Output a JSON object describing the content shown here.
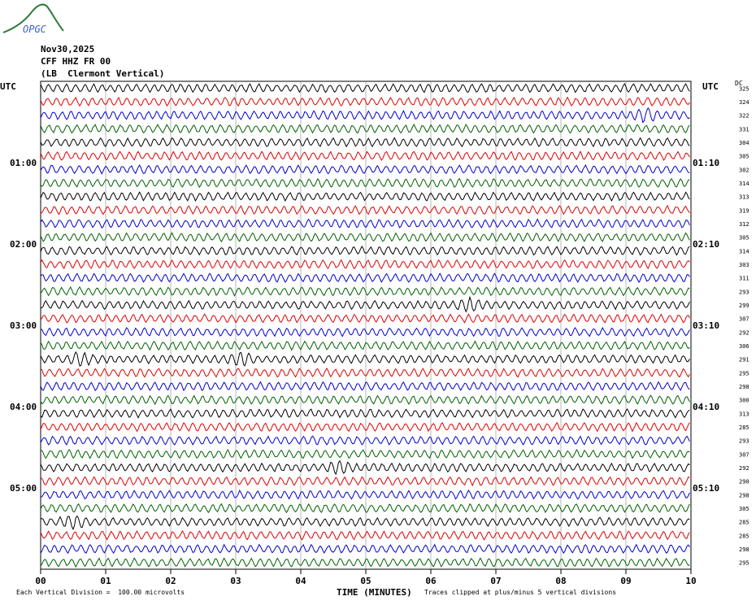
{
  "header": {
    "date": "Nov30,2025",
    "station": "CFF HHZ FR 00",
    "location": "(LB  Clermont Vertical)",
    "utc_left": "UTC",
    "utc_right": "UTC",
    "dc_label": "DC",
    "logo_text": "OPGC"
  },
  "footer": {
    "scale_note": "Each Vertical Division =  100.00 microvolts",
    "time_axis_label": "TIME (MINUTES)",
    "clip_note": "Traces clipped at plus/minus 5 vertical divisions"
  },
  "colors": {
    "trace_cycle": [
      "#000000",
      "#e00000",
      "#0000d0",
      "#006000"
    ],
    "grid": "#888888",
    "logo": "#2d7a3a"
  },
  "chart_data": {
    "type": "line",
    "description_type": "helicorder",
    "x_ticks": [
      "00",
      "01",
      "02",
      "03",
      "04",
      "05",
      "06",
      "07",
      "08",
      "09",
      "10"
    ],
    "xlim": [
      0,
      10
    ],
    "left_time_labels": [
      "01:00",
      "02:00",
      "03:00",
      "04:00",
      "05:00"
    ],
    "right_time_labels": [
      "01:10",
      "02:10",
      "03:10",
      "04:10",
      "05:10"
    ],
    "dc_offsets": [
      325,
      324,
      322,
      331,
      304,
      305,
      302,
      314,
      313,
      319,
      312,
      305,
      314,
      303,
      311,
      293,
      299,
      307,
      292,
      306,
      291,
      295,
      298,
      300,
      313,
      285,
      293,
      307,
      292,
      290,
      298,
      305,
      285,
      285,
      298,
      295
    ],
    "event_bursts": [
      {
        "trace": 2,
        "minute": 9.3
      },
      {
        "trace": 16,
        "minute": 6.6
      },
      {
        "trace": 20,
        "minute": 0.6
      },
      {
        "trace": 20,
        "minute": 3.1
      },
      {
        "trace": 28,
        "minute": 4.6
      },
      {
        "trace": 32,
        "minute": 0.5
      }
    ]
  }
}
